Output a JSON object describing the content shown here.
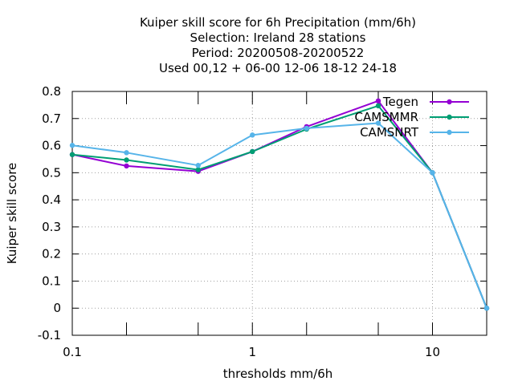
{
  "chart_data": {
    "type": "line",
    "title_lines": [
      "Kuiper skill score  for 6h Precipitation (mm/6h)",
      "Selection: Ireland      28 stations",
      "Period: 20200508-20200522",
      "Used  00,12  + 06-00 12-06 18-12 24-18"
    ],
    "xlabel": "thresholds mm/6h",
    "ylabel": "Kuiper skill score",
    "x_scale": "log",
    "xlim": [
      0.1,
      20
    ],
    "ylim": [
      -0.1,
      0.8
    ],
    "x_ticks": [
      {
        "value": 0.1,
        "label": "0.1"
      },
      {
        "value": 1,
        "label": "1"
      },
      {
        "value": 10,
        "label": "10"
      }
    ],
    "x_minor_ticks": [
      0.2,
      0.5,
      2,
      5,
      20
    ],
    "y_ticks": [
      {
        "value": -0.1,
        "label": "-0.1"
      },
      {
        "value": 0,
        "label": "0"
      },
      {
        "value": 0.1,
        "label": "0.1"
      },
      {
        "value": 0.2,
        "label": "0.2"
      },
      {
        "value": 0.3,
        "label": "0.3"
      },
      {
        "value": 0.4,
        "label": "0.4"
      },
      {
        "value": 0.5,
        "label": "0.5"
      },
      {
        "value": 0.6,
        "label": "0.6"
      },
      {
        "value": 0.7,
        "label": "0.7"
      },
      {
        "value": 0.8,
        "label": "0.8"
      }
    ],
    "grid": true,
    "legend_position": "top-right",
    "x": [
      0.1,
      0.2,
      0.5,
      1,
      2,
      5,
      10,
      20
    ],
    "series": [
      {
        "name": "Tegen",
        "color": "#9400d3",
        "values": [
          0.567,
          0.525,
          0.505,
          0.578,
          0.67,
          0.765,
          0.5,
          0.0
        ]
      },
      {
        "name": "CAMSMMR",
        "color": "#009e73",
        "values": [
          0.567,
          0.547,
          0.511,
          0.578,
          0.661,
          0.747,
          0.5,
          0.0
        ]
      },
      {
        "name": "CAMSNRT",
        "color": "#56b4e9",
        "values": [
          0.601,
          0.574,
          0.527,
          0.639,
          0.664,
          0.683,
          0.5,
          0.0
        ]
      }
    ]
  }
}
